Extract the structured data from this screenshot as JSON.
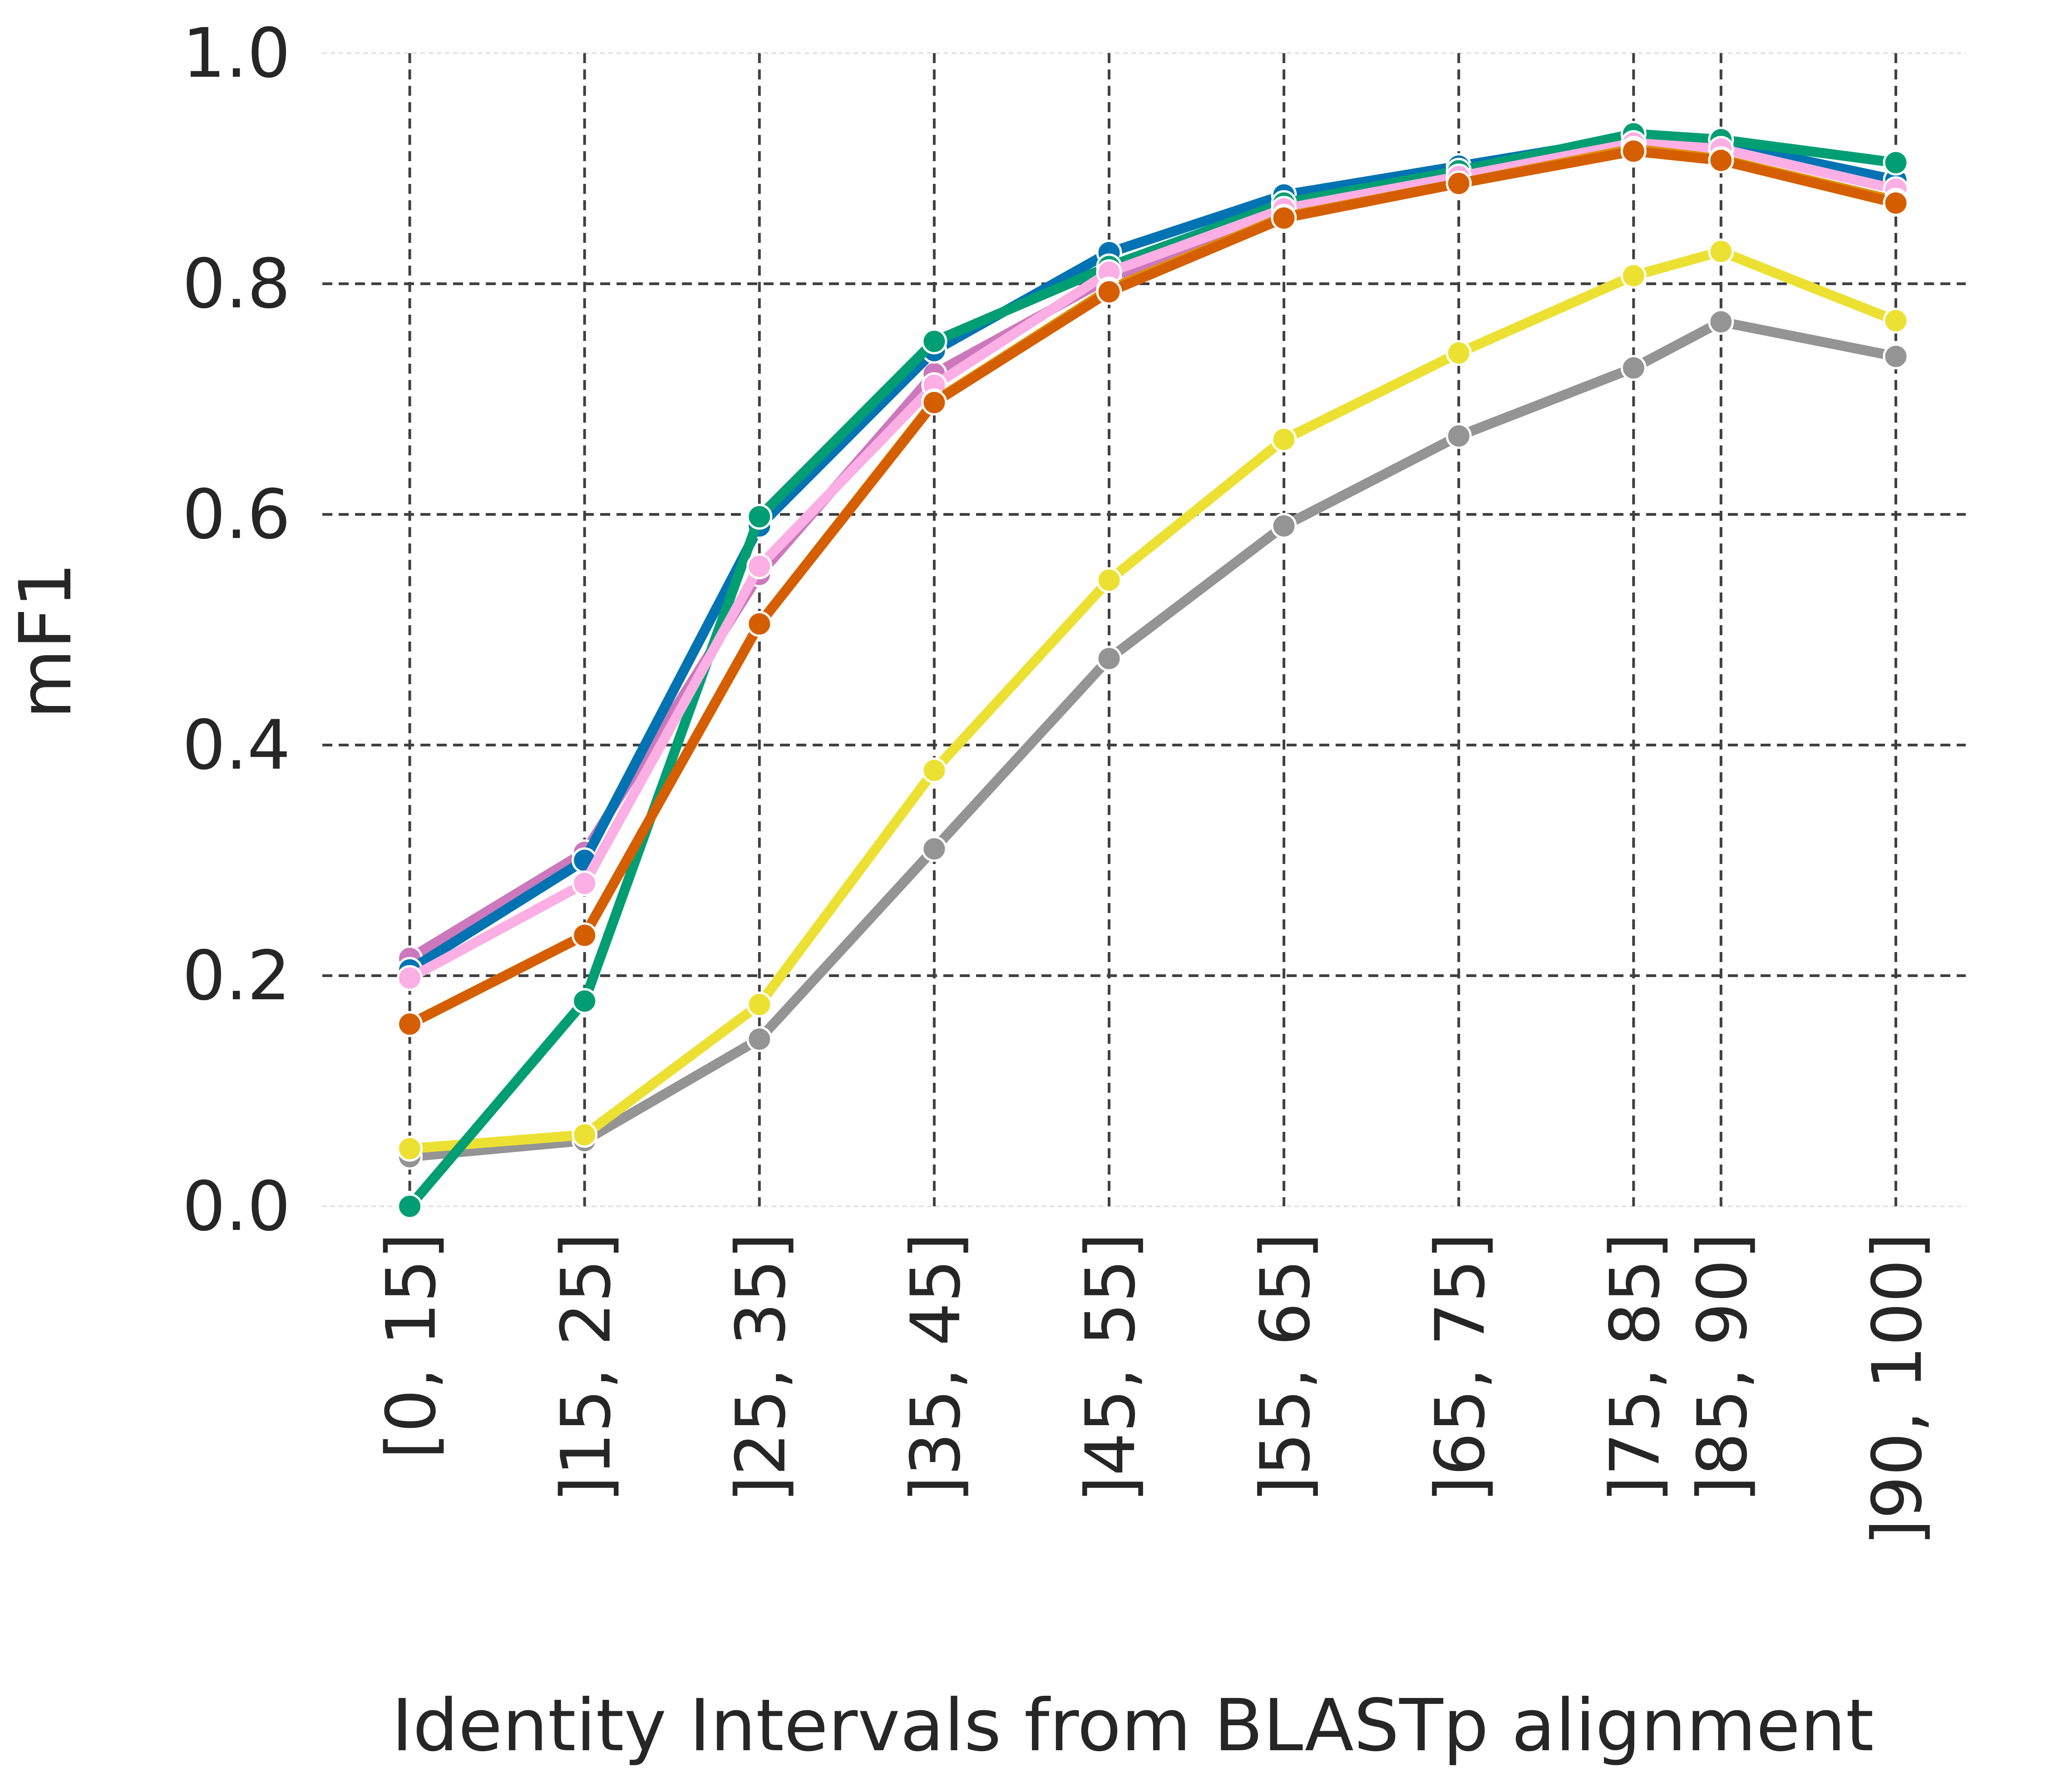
{
  "chart_data": {
    "type": "line",
    "title": "",
    "xlabel": "Identity Intervals from BLASTp alignment",
    "ylabel": "mF1",
    "ylim": [
      0,
      1
    ],
    "yticks": [
      "0.0",
      "0.2",
      "0.4",
      "0.6",
      "0.8",
      "1.0"
    ],
    "ytick_values": [
      0,
      0.2,
      0.4,
      0.6,
      0.8,
      1.0
    ],
    "x_positions": [
      15,
      25,
      35,
      45,
      55,
      65,
      75,
      85,
      90,
      100
    ],
    "xlim": [
      10,
      104
    ],
    "categories": [
      "[0, 15]",
      "]15, 25]",
      "]25, 35]",
      "]35, 45]",
      "]45, 55]",
      "]55, 65]",
      "]65, 75]",
      "]75, 85]",
      "]85, 90]",
      "]90, 100]"
    ],
    "grid": true,
    "legend": "none",
    "series": [
      {
        "color": "#949494",
        "values": [
          0.043,
          0.057,
          0.145,
          0.31,
          0.475,
          0.59,
          0.668,
          0.727,
          0.767,
          0.737
        ]
      },
      {
        "color": "#ece133",
        "values": [
          0.05,
          0.062,
          0.175,
          0.378,
          0.543,
          0.665,
          0.74,
          0.807,
          0.828,
          0.768
        ]
      },
      {
        "color": "#cc78bc",
        "values": [
          0.215,
          0.307,
          0.548,
          0.722,
          0.805,
          0.862,
          0.892,
          0.922,
          0.92,
          0.885
        ]
      },
      {
        "color": "#0173b2",
        "values": [
          0.205,
          0.3,
          0.59,
          0.742,
          0.827,
          0.877,
          0.902,
          0.927,
          0.922,
          0.89
        ]
      },
      {
        "color": "#029e73",
        "values": [
          0.0,
          0.178,
          0.598,
          0.75,
          0.815,
          0.87,
          0.898,
          0.93,
          0.925,
          0.905
        ]
      },
      {
        "color": "#fbafe4",
        "values": [
          0.198,
          0.28,
          0.555,
          0.712,
          0.81,
          0.865,
          0.893,
          0.922,
          0.917,
          0.882
        ]
      },
      {
        "color": "#de8f05",
        "values": [
          0.158,
          0.235,
          0.505,
          0.698,
          0.795,
          0.858,
          0.887,
          0.917,
          0.908,
          0.872
        ]
      },
      {
        "color": "#d55e00",
        "values": [
          0.158,
          0.235,
          0.505,
          0.697,
          0.793,
          0.857,
          0.887,
          0.915,
          0.907,
          0.87
        ]
      }
    ]
  }
}
